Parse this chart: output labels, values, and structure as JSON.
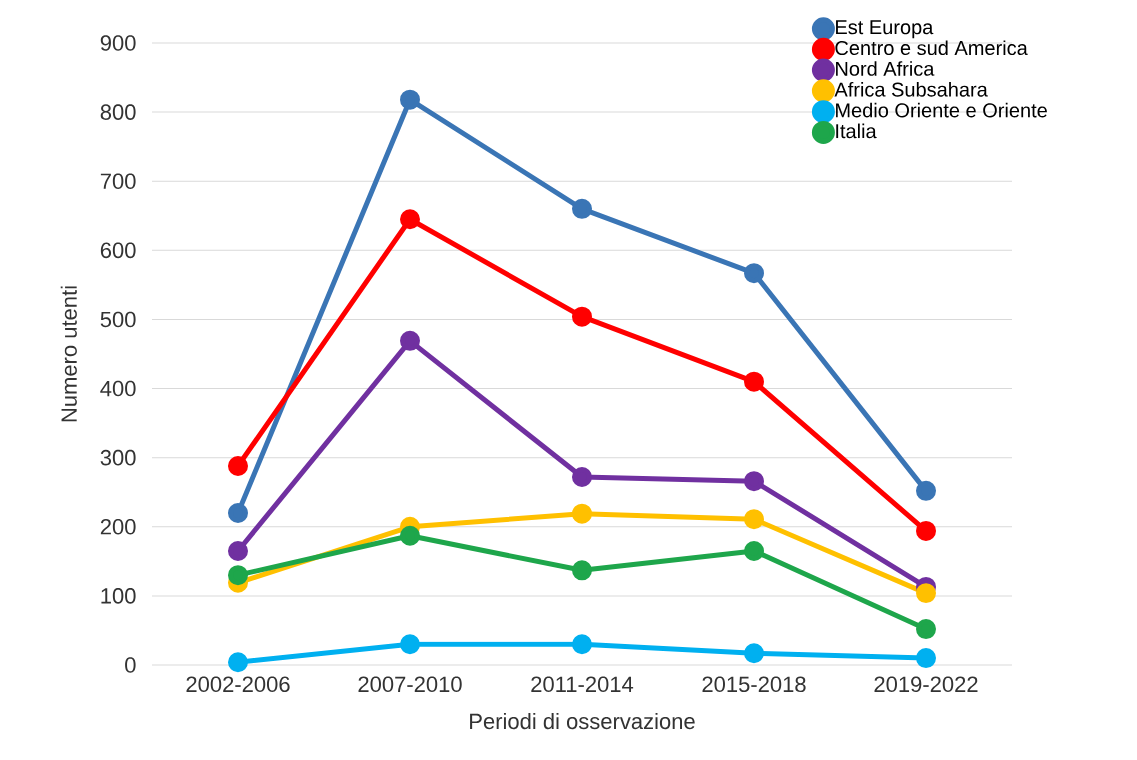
{
  "chart_data": {
    "type": "line",
    "xlabel": "Periodi di osservazione",
    "ylabel": "Numero utenti",
    "categories": [
      "2002-2006",
      "2007-2010",
      "2011-2014",
      "2015-2018",
      "2019-2022"
    ],
    "series": [
      {
        "name": "Est Europa",
        "color": "#3a75b5",
        "values": [
          220,
          818,
          660,
          567,
          252
        ]
      },
      {
        "name": "Centro e sud America",
        "color": "#ff0000",
        "values": [
          288,
          645,
          504,
          410,
          194
        ]
      },
      {
        "name": "Nord Africa",
        "color": "#7030a0",
        "values": [
          165,
          469,
          272,
          266,
          113
        ]
      },
      {
        "name": "Africa Subsahara",
        "color": "#ffc000",
        "values": [
          119,
          200,
          219,
          211,
          104
        ]
      },
      {
        "name": "Medio Oriente e Oriente",
        "color": "#00b0f0",
        "values": [
          4,
          30,
          30,
          17,
          10
        ]
      },
      {
        "name": "Italia",
        "color": "#1ea64b",
        "values": [
          130,
          187,
          137,
          165,
          52
        ]
      }
    ],
    "ylim": [
      0,
      900
    ],
    "yticks": [
      0,
      100,
      200,
      300,
      400,
      500,
      600,
      700,
      800,
      900
    ],
    "grid": "y",
    "legend": "top right",
    "marker": "circle",
    "line_style": "solid"
  }
}
